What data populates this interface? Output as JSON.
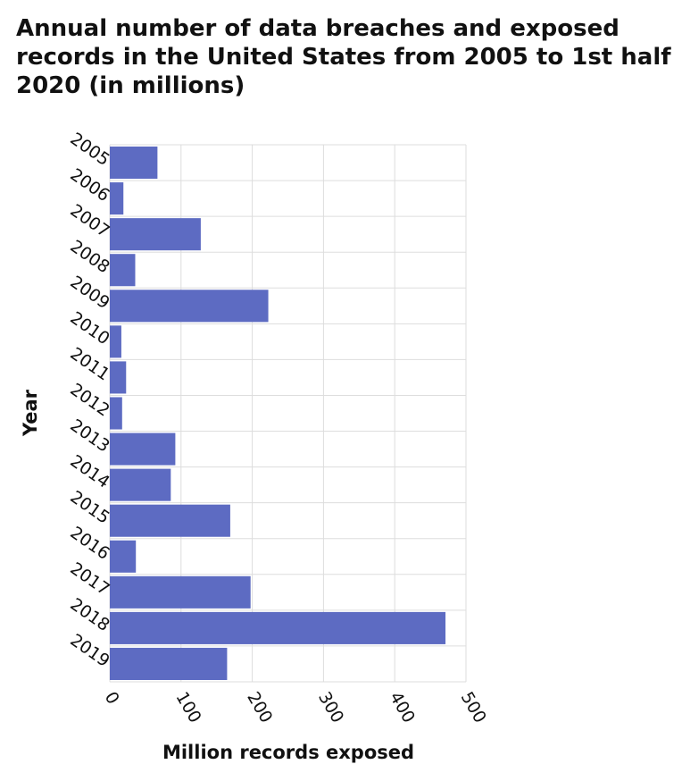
{
  "chart_data": {
    "type": "bar",
    "orientation": "horizontal",
    "title": "Annual number of data breaches and exposed records in the United States from 2005 to 1st half 2020 (in millions)",
    "xlabel": "Million records exposed",
    "ylabel": "Year",
    "categories": [
      "2005",
      "2006",
      "2007",
      "2008",
      "2009",
      "2010",
      "2011",
      "2012",
      "2013",
      "2014",
      "2015",
      "2016",
      "2017",
      "2018",
      "2019"
    ],
    "values": [
      66.9,
      19.1,
      127.7,
      35.7,
      222.5,
      16.2,
      22.9,
      17.3,
      91.98,
      85.61,
      169.07,
      36.6,
      197.61,
      471.23,
      164.68
    ],
    "xlim": [
      0,
      500
    ],
    "xticks": [
      0,
      100,
      200,
      300,
      400,
      500
    ],
    "grid": true,
    "bar_color": "#5d6bc2",
    "grid_color": "#dddddd"
  }
}
